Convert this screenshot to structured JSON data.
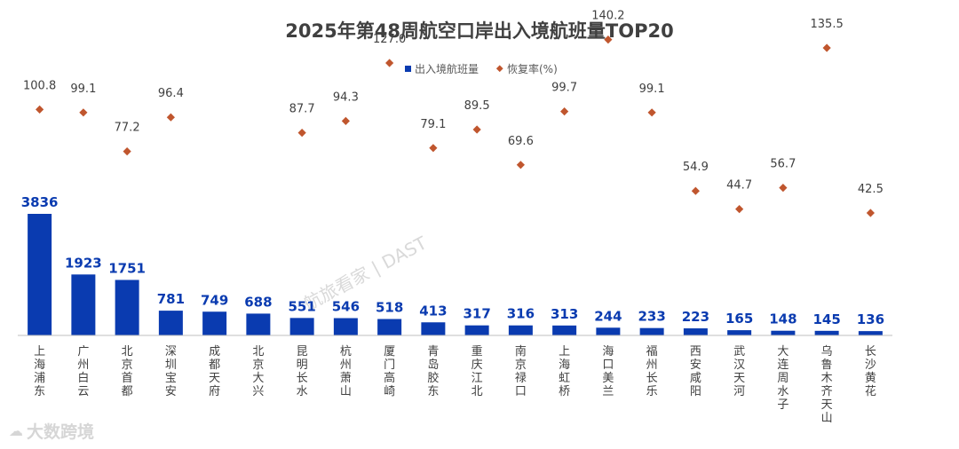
{
  "chart_data": {
    "type": "bar",
    "title": "2025年第48周航空口岸出入境航班量TOP20",
    "categories": [
      "上海浦东",
      "广州白云",
      "北京首都",
      "深圳宝安",
      "成都天府",
      "北京大兴",
      "昆明长水",
      "杭州萧山",
      "厦门高崎",
      "青岛胶东",
      "重庆江北",
      "南京禄口",
      "上海虹桥",
      "海口美兰",
      "福州长乐",
      "西安咸阳",
      "武汉天河",
      "大连周水子",
      "乌鲁木齐天山",
      "长沙黄花"
    ],
    "series": [
      {
        "name": "出入境航班量",
        "type": "bar",
        "color": "#0a3bb0",
        "values": [
          3836,
          1923,
          1751,
          781,
          749,
          688,
          551,
          546,
          518,
          413,
          317,
          316,
          313,
          244,
          233,
          223,
          165,
          148,
          145,
          136
        ]
      },
      {
        "name": "恢复率(%)",
        "type": "scatter",
        "color": "#c0562e",
        "values": [
          100.8,
          99.1,
          77.2,
          96.4,
          null,
          null,
          87.7,
          94.3,
          127.0,
          79.1,
          89.5,
          69.6,
          99.7,
          140.2,
          99.1,
          54.9,
          44.7,
          56.7,
          135.5,
          42.5
        ],
        "labels": [
          "100.8",
          "99.1",
          "77.2",
          "96.4",
          null,
          null,
          "87.7",
          "94.3",
          "127.0",
          "79.1",
          "89.5",
          "69.6",
          "99.7",
          "140.2",
          "99.1",
          "54.9",
          "44.7",
          "56.7",
          "135.5",
          "42.5"
        ]
      }
    ],
    "legend": "top-center",
    "grid": false
  },
  "watermark": {
    "text": "航旅看家 | DAST"
  },
  "logo": {
    "icon": "cloud-logo-icon",
    "text": "大数跨境"
  }
}
